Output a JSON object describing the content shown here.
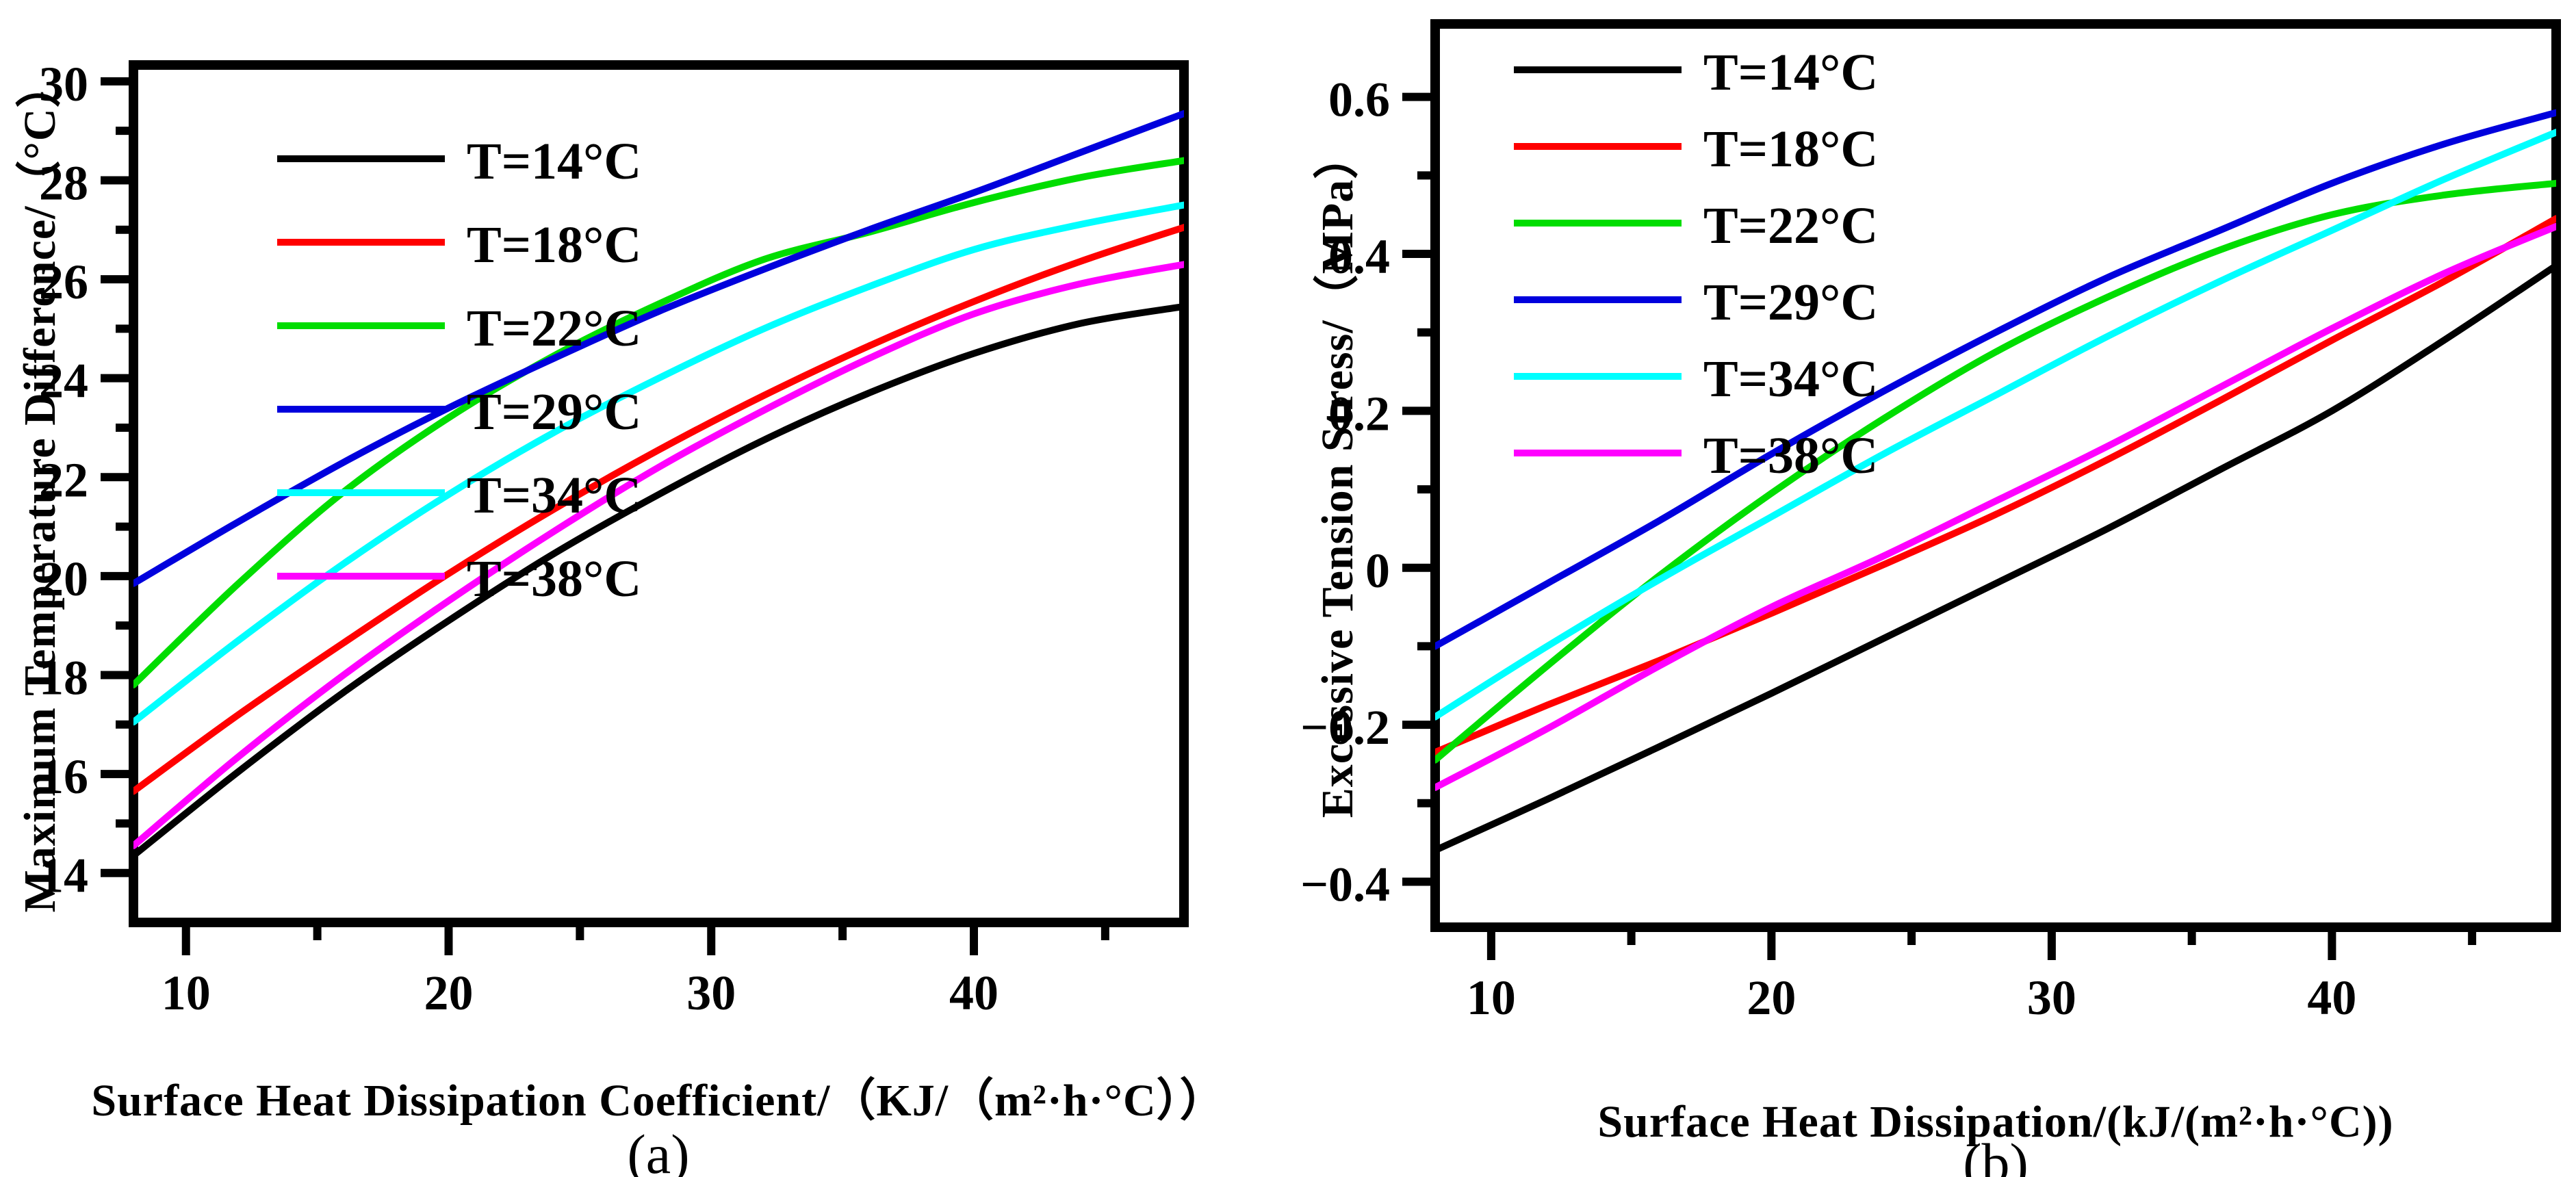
{
  "page": {
    "background": "#ffffff"
  },
  "panels": [
    {
      "id": "a",
      "caption": "(a)",
      "x_label": "Surface Heat Dissipation Coefficient/（KJ/（m²·h·°C））",
      "y_label": "Maximum Temperature Difference/（°C）"
    },
    {
      "id": "b",
      "caption": "(b)",
      "x_label": "Surface Heat Dissipation/(kJ/(m²·h·°C))",
      "y_label": "Excessive Tension Stress/（MPa）"
    }
  ],
  "chart_data": [
    {
      "id": "a",
      "type": "line",
      "title": "",
      "xlabel": "Surface Heat Dissipation Coefficient/（KJ/（m²·h·°C））",
      "ylabel": "Maximum Temperature Difference/（°C）",
      "xlim": [
        8,
        48
      ],
      "ylim": [
        13.0,
        30.33
      ],
      "grid": false,
      "legend_position": "top-left",
      "x_ticks_major": [
        10,
        20,
        30,
        40
      ],
      "x_ticks_minor": [
        15,
        25,
        35,
        45
      ],
      "x_tick_labels": [
        "10",
        "20",
        "30",
        "40"
      ],
      "y_ticks_major": [
        14,
        16,
        18,
        20,
        22,
        24,
        26,
        28,
        30
      ],
      "y_ticks_minor": [
        15,
        17,
        19,
        21,
        23,
        25,
        27,
        29
      ],
      "y_tick_labels": [
        "14",
        "16",
        "18",
        "20",
        "22",
        "24",
        "26",
        "28",
        "30"
      ],
      "x": [
        8,
        12,
        16,
        20,
        24,
        28,
        32,
        36,
        40,
        44,
        48
      ],
      "series": [
        {
          "name": "T=14°C",
          "color": "#000000",
          "values": [
            14.35,
            16.05,
            17.65,
            19.1,
            20.45,
            21.65,
            22.75,
            23.7,
            24.5,
            25.1,
            25.45
          ]
        },
        {
          "name": "T=18°C",
          "color": "#ff0000",
          "values": [
            15.65,
            17.2,
            18.65,
            20.05,
            21.35,
            22.55,
            23.65,
            24.65,
            25.55,
            26.35,
            27.05
          ]
        },
        {
          "name": "T=22°C",
          "color": "#00dd00",
          "values": [
            17.8,
            19.85,
            21.7,
            23.2,
            24.45,
            25.5,
            26.4,
            26.95,
            27.55,
            28.05,
            28.4
          ]
        },
        {
          "name": "T=29°C",
          "color": "#0000dd",
          "values": [
            19.85,
            21.1,
            22.3,
            23.4,
            24.4,
            25.35,
            26.2,
            27.0,
            27.75,
            28.55,
            29.35
          ]
        },
        {
          "name": "T=34°C",
          "color": "#00ffff",
          "values": [
            17.05,
            18.7,
            20.25,
            21.65,
            22.9,
            24.0,
            25.0,
            25.85,
            26.6,
            27.1,
            27.5
          ]
        },
        {
          "name": "T=38°C",
          "color": "#ff00ff",
          "values": [
            14.55,
            16.35,
            18.0,
            19.5,
            20.9,
            22.2,
            23.35,
            24.4,
            25.3,
            25.9,
            26.3
          ]
        }
      ]
    },
    {
      "id": "b",
      "type": "line",
      "title": "",
      "xlabel": "Surface Heat Dissipation/(kJ/(m²·h·°C))",
      "ylabel": "Excessive Tension Stress/（MPa）",
      "xlim": [
        8,
        48
      ],
      "ylim": [
        -0.458,
        0.693
      ],
      "grid": false,
      "legend_position": "top-left",
      "x_ticks_major": [
        10,
        20,
        30,
        40
      ],
      "x_ticks_minor": [
        15,
        25,
        35,
        45
      ],
      "x_tick_labels": [
        "10",
        "20",
        "30",
        "40"
      ],
      "y_ticks_major": [
        -0.4,
        -0.2,
        0,
        0.2,
        0.4,
        0.6
      ],
      "y_ticks_minor": [
        -0.3,
        -0.1,
        0.1,
        0.3,
        0.5
      ],
      "y_tick_labels": [
        "−0.4",
        "−0.2",
        "0",
        "0.2",
        "0.4",
        "0.6"
      ],
      "x": [
        8,
        12,
        16,
        20,
        24,
        28,
        32,
        36,
        40,
        44,
        48
      ],
      "series": [
        {
          "name": "T=14°C",
          "color": "#000000",
          "values": [
            -0.36,
            -0.295,
            -0.228,
            -0.16,
            -0.09,
            -0.02,
            0.05,
            0.125,
            0.2,
            0.29,
            0.385
          ]
        },
        {
          "name": "T=18°C",
          "color": "#ff0000",
          "values": [
            -0.235,
            -0.175,
            -0.118,
            -0.058,
            0.004,
            0.068,
            0.138,
            0.213,
            0.29,
            0.365,
            0.445
          ]
        },
        {
          "name": "T=22°C",
          "color": "#00dd00",
          "values": [
            -0.245,
            -0.125,
            -0.01,
            0.095,
            0.19,
            0.275,
            0.345,
            0.405,
            0.45,
            0.475,
            0.49
          ]
        },
        {
          "name": "T=29°C",
          "color": "#0000dd",
          "values": [
            -0.1,
            -0.02,
            0.06,
            0.145,
            0.225,
            0.3,
            0.37,
            0.43,
            0.49,
            0.54,
            0.58
          ]
        },
        {
          "name": "T=34°C",
          "color": "#00ffff",
          "values": [
            -0.19,
            -0.1,
            -0.015,
            0.065,
            0.145,
            0.22,
            0.295,
            0.365,
            0.43,
            0.495,
            0.555
          ]
        },
        {
          "name": "T=38°C",
          "color": "#ff00ff",
          "values": [
            -0.28,
            -0.205,
            -0.125,
            -0.05,
            0.015,
            0.085,
            0.155,
            0.23,
            0.305,
            0.375,
            0.435
          ]
        }
      ]
    }
  ]
}
